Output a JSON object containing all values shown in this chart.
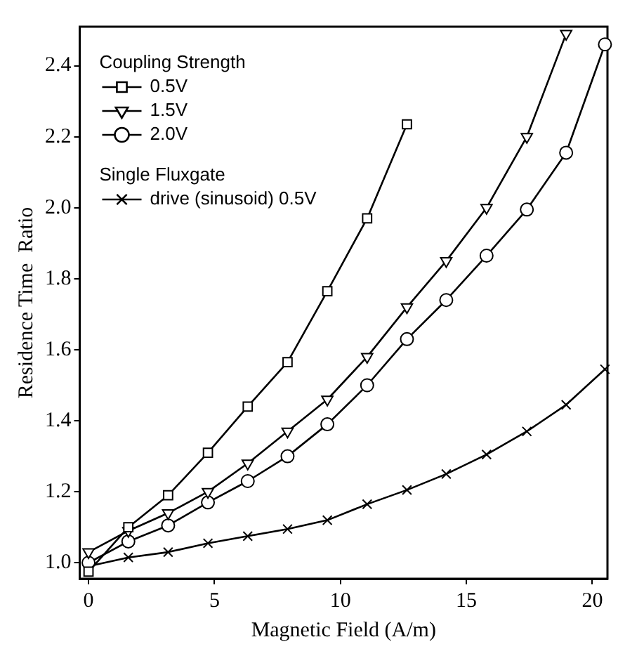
{
  "chart_data": {
    "type": "line",
    "xlabel": "Magnetic Field (A/m)",
    "ylabel": "Residence Time  Ratio",
    "legend_title": "Coupling Strength",
    "legend": "top left",
    "grid": false,
    "annotations": [
      "Single Fluxgate"
    ],
    "xlim": [
      -0.35,
      20.6
    ],
    "xticks": [
      0,
      5,
      10,
      15,
      20
    ],
    "ylim": [
      0.955,
      2.51
    ],
    "yticks": [
      {
        "value": 1,
        "label": "1.0"
      },
      1.2,
      1.4,
      1.6,
      1.8,
      {
        "value": 2,
        "label": "2.0"
      },
      2.2,
      2.4
    ],
    "series": [
      {
        "name": "0.5V",
        "color": "#000000",
        "marker": "square",
        "x": [
          0,
          1.58,
          3.16,
          4.74,
          6.32,
          7.9,
          9.48,
          11.06,
          12.64
        ],
        "values": [
          0.975,
          1.1,
          1.19,
          1.31,
          1.44,
          1.565,
          1.765,
          1.97,
          2.235
        ]
      },
      {
        "name": "1.5V",
        "color": "#000000",
        "marker": "triangle",
        "x": [
          0,
          1.58,
          3.16,
          4.74,
          6.32,
          7.9,
          9.48,
          11.06,
          12.64,
          14.2,
          15.8,
          17.4,
          18.96
        ],
        "values": [
          1.03,
          1.09,
          1.14,
          1.2,
          1.28,
          1.37,
          1.46,
          1.58,
          1.72,
          1.85,
          2.0,
          2.2,
          2.49
        ]
      },
      {
        "name": "2.0V",
        "color": "#000000",
        "marker": "circle",
        "x": [
          0,
          1.58,
          3.16,
          4.74,
          6.32,
          7.9,
          9.48,
          11.06,
          12.64,
          14.2,
          15.8,
          17.4,
          18.96,
          20.5
        ],
        "values": [
          1.0,
          1.06,
          1.105,
          1.17,
          1.23,
          1.3,
          1.39,
          1.5,
          1.63,
          1.74,
          1.865,
          1.995,
          2.155,
          2.46
        ]
      },
      {
        "name": "drive (sinusoid) 0.5V",
        "color": "#000000",
        "marker": "cross",
        "x": [
          0,
          1.58,
          3.16,
          4.74,
          6.32,
          7.9,
          9.48,
          11.06,
          12.64,
          14.2,
          15.8,
          17.4,
          18.96,
          20.5
        ],
        "values": [
          0.99,
          1.015,
          1.03,
          1.055,
          1.075,
          1.095,
          1.12,
          1.165,
          1.205,
          1.25,
          1.305,
          1.37,
          1.445,
          1.545
        ]
      }
    ]
  }
}
